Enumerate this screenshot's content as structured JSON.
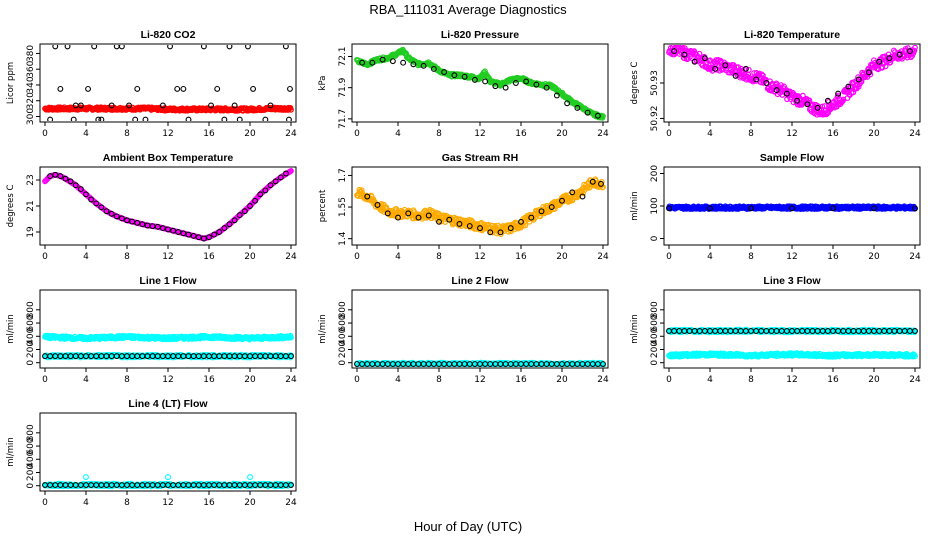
{
  "figure": {
    "title": "RBA_111031  Average Diagnostics",
    "xlabel": "Hour of Day (UTC)"
  },
  "colors": {
    "red": "#ff0000",
    "green": "#22cc22",
    "magenta": "#ff00ff",
    "orange": "#ffaa00",
    "blue": "#0000ff",
    "cyan": "#00ffff",
    "black": "#000000"
  },
  "chart_data": [
    {
      "type": "scatter",
      "title": "Li-820 CO2",
      "ylabel": "Licor ppm",
      "xlim": [
        0,
        24
      ],
      "ylim": [
        293,
        392
      ],
      "yticks": [
        300,
        320,
        340,
        360,
        380
      ],
      "xticks": [
        0,
        4,
        8,
        12,
        16,
        20,
        24
      ],
      "series": [
        {
          "name": "co2 all",
          "color": "red",
          "marker": "dense",
          "x": [
            0,
            2,
            4,
            6,
            8,
            10,
            12,
            14,
            16,
            18,
            20,
            22,
            24
          ],
          "y": [
            310,
            310,
            310,
            310,
            310,
            310,
            309,
            309,
            309,
            309,
            309,
            310,
            310
          ]
        },
        {
          "name": "co2 avg",
          "color": "black",
          "marker": "open",
          "x": [
            0.5,
            1.5,
            2.2,
            3.0,
            3.5,
            4.2,
            4.8,
            5.5,
            6.5,
            7.5,
            8.2,
            9.0,
            9.8,
            11.5,
            12.2,
            12.9,
            14.0,
            15.5,
            16.2,
            16.8,
            17.5,
            18.5,
            19.8,
            20.3,
            21.5,
            22.0,
            23.5,
            23.9,
            2.8,
            5.2,
            8.8,
            13.5,
            19.0,
            1.0,
            7.0,
            18.0,
            23.8
          ],
          "y": [
            296,
            335,
            389,
            314,
            314,
            335,
            389,
            296,
            314,
            389,
            314,
            335,
            296,
            314,
            389,
            335,
            296,
            389,
            314,
            335,
            296,
            314,
            389,
            335,
            296,
            314,
            389,
            335,
            296,
            296,
            296,
            335,
            296,
            389,
            389,
            389,
            296
          ]
        }
      ]
    },
    {
      "type": "scatter",
      "title": "Li-820 Pressure",
      "ylabel": "kPa",
      "xlim": [
        0,
        24
      ],
      "ylim": [
        71.68,
        72.18
      ],
      "yticks": [
        71.7,
        71.9,
        72.1
      ],
      "xticks": [
        0,
        4,
        8,
        12,
        16,
        20,
        24
      ],
      "series": [
        {
          "name": "pressure all",
          "color": "green",
          "marker": "dense",
          "x": [
            0,
            1,
            2,
            3,
            4,
            4.5,
            5,
            6,
            7,
            8,
            9,
            10,
            11,
            12,
            12.5,
            13,
            14,
            15,
            16,
            17,
            18,
            19,
            20,
            21,
            22,
            23,
            24
          ],
          "y": [
            72.07,
            72.05,
            72.08,
            72.09,
            72.12,
            72.14,
            72.09,
            72.05,
            72.06,
            72.01,
            71.98,
            71.98,
            71.97,
            71.96,
            72.0,
            71.94,
            71.92,
            71.95,
            71.96,
            71.93,
            71.92,
            71.91,
            71.86,
            71.81,
            71.77,
            71.73,
            71.71
          ]
        },
        {
          "name": "pressure avg",
          "color": "black",
          "marker": "open",
          "x": [
            0.5,
            1.5,
            2.5,
            3.5,
            4.5,
            5.5,
            6.5,
            7.5,
            8.5,
            9.5,
            10.5,
            11.5,
            12.5,
            13.5,
            14.5,
            15.5,
            16.5,
            17.5,
            18.5,
            19.5,
            20.5,
            21.5,
            22.5,
            23.5
          ],
          "y": [
            72.06,
            72.06,
            72.08,
            72.07,
            72.06,
            72.05,
            72.04,
            72.02,
            72.0,
            71.98,
            71.97,
            71.95,
            71.94,
            71.91,
            71.9,
            71.93,
            71.94,
            71.92,
            71.9,
            71.85,
            71.8,
            71.77,
            71.74,
            71.72
          ]
        }
      ]
    },
    {
      "type": "scatter",
      "title": "Li-820 Temperature",
      "ylabel": "degrees C",
      "xlim": [
        0,
        24
      ],
      "ylim": [
        50.919,
        50.941
      ],
      "yticks": [
        50.92,
        50.93
      ],
      "xticks": [
        0,
        4,
        8,
        12,
        16,
        20,
        24
      ],
      "series": [
        {
          "name": "temperature all",
          "color": "magenta",
          "marker": "dense",
          "x": [
            0,
            1,
            2,
            3,
            4,
            5,
            6,
            7,
            8,
            9,
            10,
            11,
            12,
            13,
            14,
            15,
            16,
            17,
            18,
            19,
            20,
            21,
            22,
            23,
            24
          ],
          "y": [
            50.94,
            50.939,
            50.938,
            50.937,
            50.935,
            50.935,
            50.934,
            50.933,
            50.932,
            50.931,
            50.929,
            50.928,
            50.926,
            50.925,
            50.923,
            50.922,
            50.924,
            50.926,
            50.929,
            50.932,
            50.935,
            50.936,
            50.938,
            50.938,
            50.939
          ]
        },
        {
          "name": "temperature avg",
          "color": "black",
          "marker": "open",
          "x": [
            0.5,
            1.5,
            2.5,
            3.5,
            4.5,
            5.5,
            6.5,
            7.5,
            8.5,
            9.5,
            10.5,
            11.5,
            12.5,
            13.5,
            14.5,
            15.5,
            16.5,
            17.5,
            18.5,
            19.5,
            20.5,
            21.5,
            22.5,
            23.5
          ],
          "y": [
            50.939,
            50.938,
            50.936,
            50.937,
            50.934,
            50.935,
            50.932,
            50.934,
            50.931,
            50.93,
            50.928,
            50.927,
            50.925,
            50.924,
            50.923,
            50.925,
            50.927,
            50.929,
            50.931,
            50.933,
            50.936,
            50.937,
            50.938,
            50.939
          ]
        }
      ]
    },
    {
      "type": "scatter",
      "title": "Ambient Box Temperature",
      "ylabel": "degrees C",
      "xlim": [
        0,
        24
      ],
      "ylim": [
        18,
        24
      ],
      "yticks": [
        19,
        21,
        23
      ],
      "xticks": [
        0,
        4,
        8,
        12,
        16,
        20,
        24
      ],
      "series": [
        {
          "name": "box temp all",
          "color": "magenta",
          "marker": "line",
          "x": [
            0,
            0.5,
            1,
            1.5,
            2,
            3,
            4,
            5,
            6,
            7,
            8,
            9,
            10,
            11,
            12,
            13,
            14,
            15,
            15.5,
            16,
            17,
            18,
            19,
            20,
            21,
            22,
            23,
            24
          ],
          "y": [
            22.9,
            23.3,
            23.4,
            23.3,
            23.1,
            22.6,
            21.9,
            21.2,
            20.6,
            20.2,
            19.9,
            19.7,
            19.5,
            19.4,
            19.2,
            19.0,
            18.8,
            18.6,
            18.5,
            18.6,
            19.0,
            19.6,
            20.3,
            21.0,
            21.9,
            22.6,
            23.2,
            23.7
          ]
        },
        {
          "name": "box temp avg",
          "color": "black",
          "marker": "open",
          "x": [
            0.5,
            1.0,
            1.5,
            2.0,
            2.5,
            3.0,
            3.5,
            4.0,
            4.5,
            5.0,
            5.5,
            6.0,
            6.5,
            7.0,
            7.5,
            8.0,
            8.5,
            9.0,
            9.5,
            10.0,
            10.5,
            11.0,
            11.5,
            12.0,
            12.5,
            13.0,
            13.5,
            14.0,
            14.5,
            15.0,
            15.5,
            16.0,
            16.5,
            17.0,
            17.5,
            18.0,
            18.5,
            19.0,
            19.5,
            20.0,
            20.5,
            21.0,
            21.5,
            22.0,
            22.5,
            23.0,
            23.5
          ],
          "y": [
            23.3,
            23.4,
            23.3,
            23.1,
            22.9,
            22.6,
            22.3,
            21.9,
            21.5,
            21.2,
            20.9,
            20.6,
            20.4,
            20.2,
            20.05,
            19.9,
            19.8,
            19.7,
            19.6,
            19.5,
            19.45,
            19.4,
            19.3,
            19.2,
            19.1,
            19.0,
            18.9,
            18.8,
            18.7,
            18.6,
            18.5,
            18.6,
            18.8,
            19.0,
            19.3,
            19.6,
            19.9,
            20.3,
            20.6,
            21.0,
            21.4,
            21.9,
            22.2,
            22.6,
            22.9,
            23.2,
            23.5
          ]
        }
      ]
    },
    {
      "type": "scatter",
      "title": "Gas Stream RH",
      "ylabel": "percent",
      "xlim": [
        0,
        24
      ],
      "ylim": [
        1.37,
        1.74
      ],
      "yticks": [
        1.4,
        1.55,
        1.7
      ],
      "xticks": [
        0,
        4,
        8,
        12,
        16,
        20,
        24
      ],
      "series": [
        {
          "name": "rh all",
          "color": "orange",
          "marker": "dense",
          "x": [
            0,
            1,
            2,
            3,
            4,
            5,
            6,
            7,
            8,
            9,
            10,
            11,
            12,
            13,
            14,
            15,
            16,
            17,
            18,
            19,
            20,
            21,
            22,
            23,
            24
          ],
          "y": [
            1.62,
            1.6,
            1.56,
            1.53,
            1.52,
            1.52,
            1.51,
            1.52,
            1.5,
            1.49,
            1.48,
            1.47,
            1.46,
            1.45,
            1.44,
            1.45,
            1.47,
            1.5,
            1.53,
            1.55,
            1.58,
            1.6,
            1.63,
            1.67,
            1.66
          ]
        },
        {
          "name": "rh avg",
          "color": "black",
          "marker": "open",
          "x": [
            1,
            2,
            3,
            4,
            5,
            6,
            7,
            8,
            9,
            10,
            11,
            12,
            13,
            14,
            15,
            16,
            17,
            18,
            19,
            20,
            21,
            22,
            23,
            23.8
          ],
          "y": [
            1.6,
            1.56,
            1.52,
            1.5,
            1.52,
            1.5,
            1.51,
            1.48,
            1.49,
            1.47,
            1.46,
            1.45,
            1.43,
            1.43,
            1.45,
            1.48,
            1.5,
            1.53,
            1.55,
            1.58,
            1.62,
            1.6,
            1.67,
            1.66
          ]
        }
      ]
    },
    {
      "type": "scatter",
      "title": "Sample Flow",
      "ylabel": "ml/min",
      "xlim": [
        0,
        24
      ],
      "ylim": [
        -20,
        220
      ],
      "yticks": [
        0,
        100,
        200
      ],
      "xticks": [
        0,
        4,
        8,
        12,
        16,
        20,
        24
      ],
      "series": [
        {
          "name": "sample flow all",
          "color": "blue",
          "marker": "dense",
          "x": [
            0,
            4,
            8,
            12,
            16,
            20,
            24
          ],
          "y": [
            95,
            95,
            95,
            95,
            95,
            95,
            95
          ]
        },
        {
          "name": "sample flow avg",
          "color": "black",
          "marker": "open",
          "x": [
            0,
            4,
            8,
            12,
            16,
            20,
            24
          ],
          "y": [
            93,
            93,
            93,
            93,
            93,
            93,
            93
          ]
        }
      ]
    },
    {
      "type": "scatter",
      "title": "Line 1 Flow",
      "ylabel": "ml/min",
      "xlim": [
        0,
        24
      ],
      "ylim": [
        -80,
        1100
      ],
      "yticks": [
        0,
        200,
        400,
        600,
        800
      ],
      "xticks": [
        0,
        4,
        8,
        12,
        16,
        20,
        24
      ],
      "series": [
        {
          "name": "line 1 high",
          "color": "cyan",
          "marker": "dense",
          "x": [
            0,
            4,
            8,
            12,
            16,
            20,
            24
          ],
          "y": [
            390,
            370,
            390,
            370,
            390,
            370,
            390
          ]
        },
        {
          "name": "line 1 low",
          "color": "cyan",
          "marker": "dense",
          "x": [
            0,
            24
          ],
          "y": [
            100,
            100
          ]
        },
        {
          "name": "line 1 avg",
          "color": "black",
          "marker": "open",
          "x": [
            0,
            24
          ],
          "y": [
            100,
            100
          ]
        }
      ]
    },
    {
      "type": "scatter",
      "title": "Line 2 Flow",
      "ylabel": "ml/min",
      "xlim": [
        0,
        24
      ],
      "ylim": [
        -80,
        1100
      ],
      "yticks": [
        0,
        200,
        400,
        600,
        800
      ],
      "xticks": [
        0,
        4,
        8,
        12,
        16,
        20,
        24
      ],
      "series": [
        {
          "name": "line 2 all",
          "color": "cyan",
          "marker": "dense",
          "x": [
            0,
            24
          ],
          "y": [
            -20,
            -20
          ]
        },
        {
          "name": "line 2 avg",
          "color": "black",
          "marker": "open",
          "x": [
            0,
            24
          ],
          "y": [
            -20,
            -20
          ]
        }
      ]
    },
    {
      "type": "scatter",
      "title": "Line 3 Flow",
      "ylabel": "ml/min",
      "xlim": [
        0,
        24
      ],
      "ylim": [
        -80,
        1100
      ],
      "yticks": [
        0,
        200,
        400,
        600,
        800
      ],
      "xticks": [
        0,
        4,
        8,
        12,
        16,
        20,
        24
      ],
      "series": [
        {
          "name": "line 3 high",
          "color": "cyan",
          "marker": "dense",
          "x": [
            0,
            24
          ],
          "y": [
            480,
            480
          ]
        },
        {
          "name": "line 3 low",
          "color": "cyan",
          "marker": "dense",
          "x": [
            0,
            4,
            8,
            12,
            16,
            20,
            24
          ],
          "y": [
            110,
            125,
            110,
            125,
            110,
            120,
            110
          ]
        },
        {
          "name": "line 3 avg",
          "color": "black",
          "marker": "open",
          "x": [
            0,
            24
          ],
          "y": [
            480,
            480
          ]
        }
      ]
    },
    {
      "type": "scatter",
      "title": "Line 4 (LT) Flow",
      "ylabel": "ml/min",
      "xlim": [
        0,
        24
      ],
      "ylim": [
        -80,
        1100
      ],
      "yticks": [
        0,
        200,
        400,
        600,
        800
      ],
      "xticks": [
        0,
        4,
        8,
        12,
        16,
        20,
        24
      ],
      "series": [
        {
          "name": "line 4 all",
          "color": "cyan",
          "marker": "dense",
          "x": [
            0,
            24
          ],
          "y": [
            10,
            10
          ]
        },
        {
          "name": "line 4 spikes",
          "color": "cyan",
          "marker": "open",
          "x": [
            4,
            12,
            20
          ],
          "y": [
            130,
            130,
            130
          ]
        },
        {
          "name": "line 4 avg",
          "color": "black",
          "marker": "open",
          "x": [
            0,
            24
          ],
          "y": [
            10,
            10
          ]
        }
      ]
    }
  ]
}
